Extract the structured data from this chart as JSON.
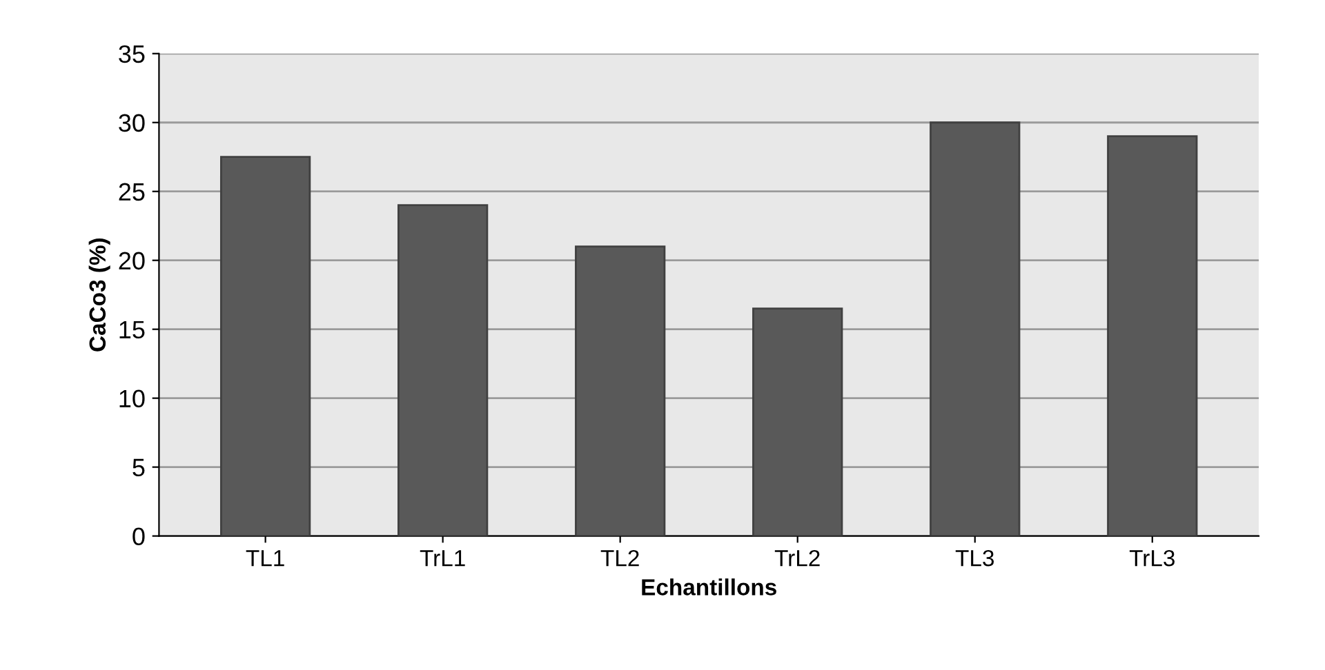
{
  "chart_data": {
    "type": "bar",
    "xlabel": "Echantillons",
    "ylabel": "CaCo3 (%)",
    "categories": [
      "TL1",
      "TrL1",
      "TL2",
      "TrL2",
      "TL3",
      "TrL3"
    ],
    "values": [
      27.5,
      24,
      21,
      16.5,
      30,
      29
    ],
    "color": "#595959",
    "ylim": [
      0,
      35
    ],
    "yticks": [
      0,
      5,
      10,
      15,
      20,
      25,
      30,
      35
    ],
    "grid": "y",
    "legend": false
  }
}
